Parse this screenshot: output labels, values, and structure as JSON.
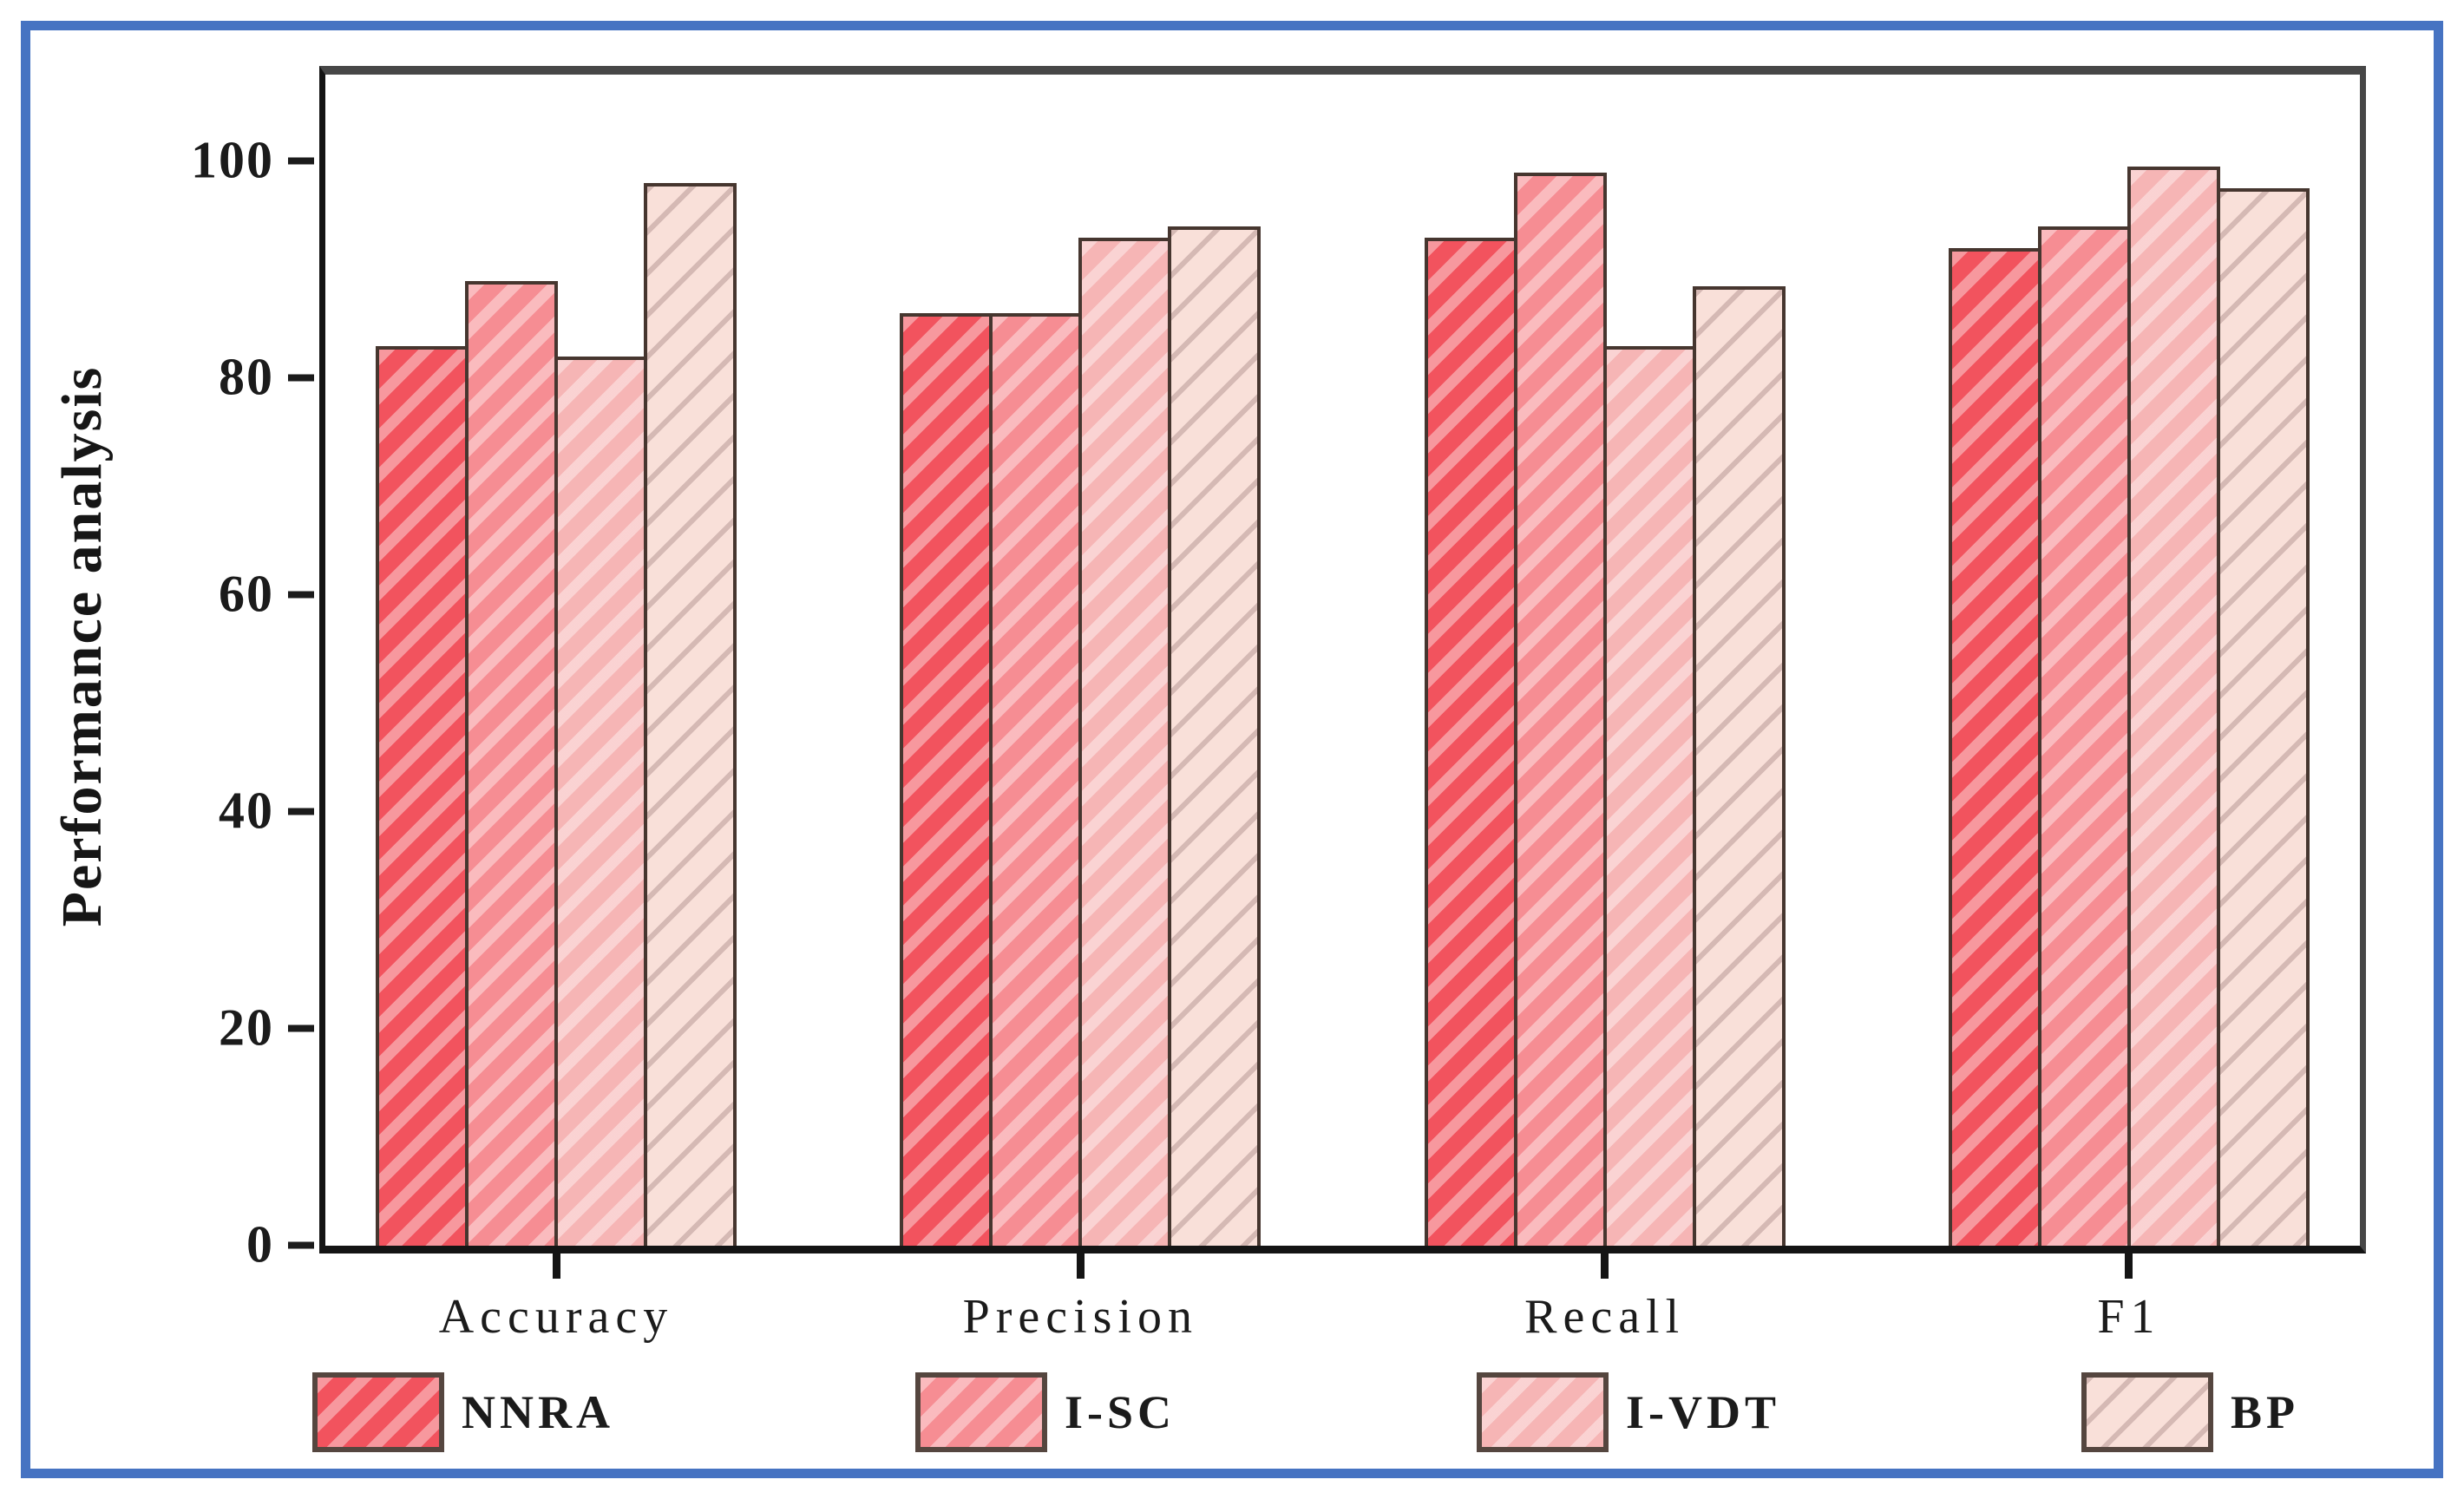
{
  "figure": {
    "border_color": "#4673C2",
    "background_color": "#FFFFFF"
  },
  "chart_data": {
    "type": "bar",
    "title": "",
    "ylabel": "Performance analysis",
    "xlabel": "",
    "categories": [
      "Accuracy",
      "Precision",
      "Recall",
      "F1"
    ],
    "series": [
      {
        "name": "NNRA",
        "color": "#F2535E",
        "hatch": "light-diagonal",
        "values": [
          83,
          86,
          93,
          92
        ]
      },
      {
        "name": "I-SC",
        "color": "#F68D93",
        "hatch": "light-diagonal",
        "values": [
          89,
          86,
          99,
          94
        ]
      },
      {
        "name": "I-VDT",
        "color": "#F6B5B5",
        "hatch": "light-diagonal",
        "values": [
          82,
          93,
          83,
          99.5
        ]
      },
      {
        "name": "BP",
        "color": "#F9E0D9",
        "hatch": "thin-dark-diagonal",
        "values": [
          98,
          94,
          88.5,
          97.5
        ]
      }
    ],
    "ylim": [
      0,
      108
    ],
    "yticks": [
      0,
      20,
      40,
      60,
      80,
      100
    ],
    "grid": false,
    "legend_position": "bottom",
    "bar_border_color": "#46362F",
    "axis_color": "#141414"
  }
}
